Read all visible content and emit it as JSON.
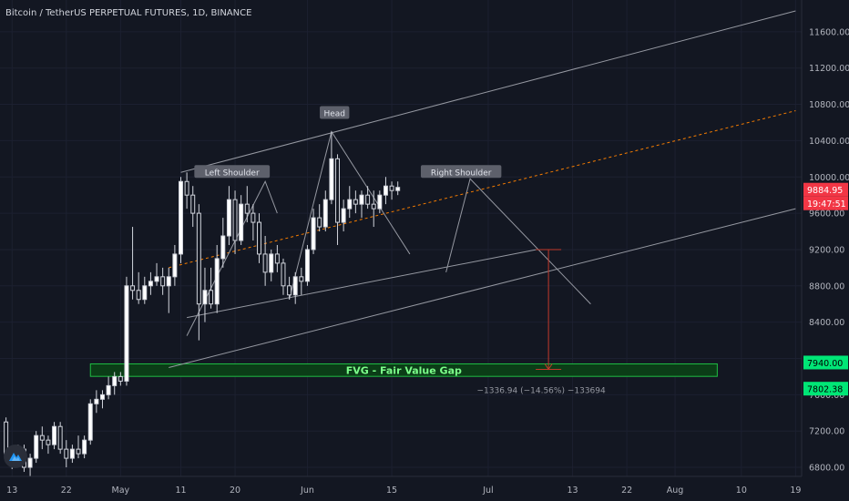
{
  "header": {
    "title": "Bitcoin / TetherUS PERPETUAL FUTURES, 1D, BINANCE"
  },
  "colors": {
    "background": "#131722",
    "up": "#ffffff",
    "down": "#ffffff",
    "wick": "#d1d4dc",
    "grid": "#1c2030",
    "channel": "#9598a1",
    "midline": "#f57c00",
    "fvg_fill": "#0b3d17",
    "fvg_border": "#1fbd43",
    "fvg_text": "#7cff8a",
    "price_tag": "#f23645",
    "fvg_tag": "#00e676",
    "measure": "#c0392b"
  },
  "annotations": {
    "left_shoulder": "Left Shoulder",
    "head": "Head",
    "right_shoulder": "Right Shoulder",
    "fvg": "FVG - Fair Value Gap",
    "measure": "−1336.94 (−14.56%) −133694"
  },
  "price_tags": {
    "last_price": "9884.95",
    "countdown": "19:47:51",
    "fvg_top": "7940.00",
    "fvg_bottom": "7802.38"
  },
  "chart_data": {
    "type": "candlestick",
    "title": "Bitcoin / TetherUS PERPETUAL FUTURES, 1D, BINANCE",
    "y_ticks": [
      6800,
      7200,
      7600,
      8000,
      8400,
      8800,
      9200,
      9600,
      10000,
      10400,
      10800,
      11200,
      11600
    ],
    "y_tick_labels": [
      "6800.00",
      "7200.00",
      "7600.00",
      "",
      "8400.00",
      "8800.00",
      "9200.00",
      "9600.00",
      "10000.00",
      "10400.00",
      "10800.00",
      "11200.00",
      "11600.00"
    ],
    "ylim": [
      6700,
      11950
    ],
    "x_tick_labels": [
      "13",
      "22",
      "May",
      "11",
      "20",
      "Jun",
      "15",
      "Jul",
      "13",
      "22",
      "Aug",
      "10",
      "19"
    ],
    "x_tick_days": [
      -6,
      3,
      12,
      22,
      31,
      43,
      57,
      73,
      87,
      96,
      104,
      115,
      124
    ],
    "xlim": [
      -8,
      125
    ],
    "candles": [
      [
        -7,
        7300,
        7350,
        6850,
        6950
      ],
      [
        -6,
        6950,
        7000,
        6780,
        6850
      ],
      [
        -5,
        6850,
        7050,
        6800,
        7000
      ],
      [
        -4,
        7000,
        7050,
        6750,
        6800
      ],
      [
        -3,
        6800,
        6950,
        6700,
        6900
      ],
      [
        -2,
        6900,
        7200,
        6850,
        7150
      ],
      [
        -1,
        7150,
        7250,
        7000,
        7100
      ],
      [
        0,
        7100,
        7150,
        6950,
        7050
      ],
      [
        1,
        7050,
        7300,
        7000,
        7250
      ],
      [
        2,
        7250,
        7300,
        6950,
        7000
      ],
      [
        3,
        7000,
        7100,
        6800,
        6900
      ],
      [
        4,
        6900,
        7050,
        6850,
        7000
      ],
      [
        5,
        7000,
        7150,
        6900,
        6950
      ],
      [
        6,
        6950,
        7150,
        6900,
        7100
      ],
      [
        7,
        7100,
        7550,
        7050,
        7500
      ],
      [
        8,
        7500,
        7650,
        7400,
        7550
      ],
      [
        9,
        7550,
        7650,
        7450,
        7600
      ],
      [
        10,
        7600,
        7800,
        7550,
        7700
      ],
      [
        11,
        7700,
        7850,
        7600,
        7800
      ],
      [
        12,
        7800,
        7850,
        7700,
        7750
      ],
      [
        13,
        7750,
        8900,
        7700,
        8800
      ],
      [
        14,
        8800,
        9450,
        8650,
        8750
      ],
      [
        15,
        8750,
        8950,
        8600,
        8650
      ],
      [
        16,
        8650,
        8900,
        8600,
        8800
      ],
      [
        17,
        8800,
        8950,
        8700,
        8850
      ],
      [
        18,
        8850,
        9050,
        8800,
        8900
      ],
      [
        19,
        8900,
        9000,
        8700,
        8800
      ],
      [
        20,
        8800,
        9000,
        8500,
        8900
      ],
      [
        21,
        8900,
        9250,
        8800,
        9150
      ],
      [
        22,
        9150,
        10000,
        9050,
        9950
      ],
      [
        23,
        9950,
        10050,
        9650,
        9800
      ],
      [
        24,
        9800,
        9900,
        9450,
        9600
      ],
      [
        25,
        9600,
        9700,
        8200,
        8600
      ],
      [
        26,
        8600,
        9000,
        8400,
        8750
      ],
      [
        27,
        8750,
        9000,
        8550,
        8600
      ],
      [
        28,
        8600,
        9250,
        8500,
        9100
      ],
      [
        29,
        9100,
        9550,
        9000,
        9350
      ],
      [
        30,
        9350,
        9900,
        9250,
        9750
      ],
      [
        31,
        9750,
        9850,
        9150,
        9300
      ],
      [
        32,
        9300,
        9800,
        9250,
        9700
      ],
      [
        33,
        9700,
        9900,
        9500,
        9600
      ],
      [
        34,
        9600,
        9700,
        9300,
        9500
      ],
      [
        35,
        9500,
        9600,
        9050,
        9150
      ],
      [
        36,
        9150,
        9350,
        8800,
        8950
      ],
      [
        37,
        8950,
        9200,
        8850,
        9150
      ],
      [
        38,
        9150,
        9250,
        8950,
        9050
      ],
      [
        39,
        9050,
        9100,
        8700,
        8800
      ],
      [
        40,
        8800,
        8900,
        8650,
        8700
      ],
      [
        41,
        8700,
        8950,
        8600,
        8900
      ],
      [
        42,
        8900,
        9000,
        8700,
        8850
      ],
      [
        43,
        8850,
        9250,
        8800,
        9200
      ],
      [
        44,
        9200,
        9650,
        9150,
        9550
      ],
      [
        45,
        9550,
        9700,
        9400,
        9450
      ],
      [
        46,
        9450,
        9850,
        9400,
        9750
      ],
      [
        47,
        9750,
        10500,
        9700,
        10200
      ],
      [
        48,
        10200,
        10250,
        9250,
        9500
      ],
      [
        49,
        9500,
        9750,
        9400,
        9650
      ],
      [
        50,
        9650,
        9900,
        9550,
        9750
      ],
      [
        51,
        9750,
        9850,
        9600,
        9700
      ],
      [
        52,
        9700,
        9850,
        9550,
        9800
      ],
      [
        53,
        9800,
        9900,
        9650,
        9700
      ],
      [
        54,
        9700,
        9850,
        9450,
        9650
      ],
      [
        55,
        9650,
        9850,
        9600,
        9800
      ],
      [
        56,
        9800,
        10000,
        9700,
        9900
      ],
      [
        57,
        9900,
        9950,
        9750,
        9850
      ],
      [
        58,
        9850,
        9950,
        9800,
        9885
      ]
    ],
    "channel": {
      "upper": [
        [
          22,
          10050
        ],
        [
          124,
          11830
        ]
      ],
      "lower": [
        [
          20,
          7900
        ],
        [
          124,
          9650
        ]
      ],
      "midline": [
        [
          20,
          9000
        ],
        [
          124,
          10730
        ]
      ]
    },
    "head_shoulders": {
      "left_shoulder": [
        [
          23,
          8250
        ],
        [
          36,
          9950
        ],
        [
          38,
          9600
        ]
      ],
      "head": [
        [
          40,
          8650
        ],
        [
          47,
          10500
        ],
        [
          60,
          9150
        ]
      ],
      "right_shoulder": [
        [
          66,
          8950
        ],
        [
          70,
          9980
        ],
        [
          90,
          8600
        ]
      ],
      "neckline": [
        [
          23,
          8450
        ],
        [
          81,
          9200
        ]
      ]
    },
    "fvg": {
      "top": 7940,
      "bottom": 7802.38,
      "x_range": [
        7,
        111
      ]
    },
    "measure": {
      "x": 83,
      "from": 9200,
      "to": 7880
    },
    "last_price": 9884.95
  }
}
